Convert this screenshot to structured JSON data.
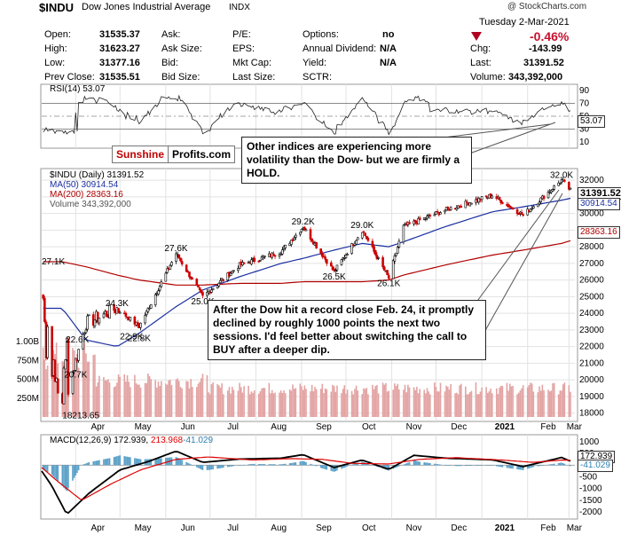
{
  "header": {
    "symbol": "$INDU",
    "name": "Dow Jones Industrial Average",
    "exchange": "INDX",
    "copyright": "@ StockCharts.com",
    "date": "Tuesday  2-Mar-2021",
    "change_pct": "-0.46%",
    "chg_label": "Chg:",
    "chg": "-143.99",
    "last_label": "Last:",
    "last": "31391.52",
    "volume_label": "Volume:",
    "volume": "343,392,000",
    "col1": [
      {
        "label": "Open:",
        "value": "31535.37"
      },
      {
        "label": "High:",
        "value": "31623.27"
      },
      {
        "label": "Low:",
        "value": "31377.16"
      },
      {
        "label": "Prev Close:",
        "value": "31535.51"
      }
    ],
    "col2": [
      "Ask:",
      "Ask Size:",
      "Bid:",
      "Bid Size:"
    ],
    "col3": [
      "P/E:",
      "EPS:",
      "Mkt Cap:",
      "Last Size:"
    ],
    "col4": [
      {
        "label": "Options:",
        "value": "no"
      },
      {
        "label": "Annual Dividend:",
        "value": "N/A"
      },
      {
        "label": "Yield:",
        "value": "N/A"
      },
      {
        "label": "SCTR:",
        "value": ""
      }
    ]
  },
  "rsi": {
    "label": "RSI(14) 53.07",
    "value": "53.07",
    "ticks": [
      "90",
      "70",
      "50",
      "30",
      "10"
    ]
  },
  "price_panel": {
    "title": "$INDU (Daily) 31391.52",
    "ma50": "MA(50) 30914.54",
    "ma200": "MA(200) 28363.16",
    "volume": "Volume 343,392,000",
    "last_tag": "31391.52",
    "ma50_tag": "30914.54",
    "ma200_tag": "28363.16",
    "price_ticks": [
      "32000",
      "31000",
      "30000",
      "29000",
      "28000",
      "27000",
      "26000",
      "25000",
      "24000",
      "23000",
      "22000",
      "21000",
      "20000",
      "19000",
      "18000"
    ],
    "volume_ticks": [
      "1.00B",
      "750M",
      "500M",
      "250M"
    ],
    "annotations": [
      "27.1K",
      "27.6K",
      "24.3K",
      "22.6K",
      "22.9K",
      "22.8K",
      "25.0K",
      "20.7K",
      "18213.65",
      "29.2K",
      "26.5K",
      "29.0K",
      "26.1K",
      "32.0K"
    ]
  },
  "macd": {
    "label": "MACD(12,26,9) 172.939, 213.968, -41.029",
    "label_prefix": "MACD(12,26,9) 172.939,",
    "label_signal": "213.968",
    "label_hist": "-41.029",
    "tag_macd": "172.939",
    "tag_hist": "-41.029",
    "ticks": [
      "1000",
      "500",
      "0",
      "-500",
      "-1000",
      "-1500",
      "-2000"
    ]
  },
  "xaxis": {
    "months": [
      "Apr",
      "May",
      "Jun",
      "Jul",
      "Aug",
      "Sep",
      "Oct",
      "Nov",
      "Dec",
      "2021",
      "Feb",
      "Mar"
    ]
  },
  "logo": {
    "part1": "Sunshine",
    "part2": "Profits.com"
  },
  "callout1": "Other indices are experiencing more volatility than the Dow- but we are firmly a HOLD.",
  "callout2": "After the Dow hit a record close Feb. 24, it promptly declined by roughly 1000 points the next two sessions. I'd feel better about switching the call to BUY after a deeper dip.",
  "colors": {
    "up": "#000000",
    "down": "#cc0000",
    "ma50": "#1a2fa0",
    "ma200": "#b00000",
    "volume": "#e3a3a3",
    "macd": "#000000",
    "signal": "#dd0000",
    "hist": "#5aa0c8"
  },
  "chart_data": {
    "type": "line",
    "title": "$INDU (Daily) 31391.52",
    "x": [
      "2020-03-23",
      "2020-04-08",
      "2020-04-29",
      "2020-05-14",
      "2020-06-08",
      "2020-06-26",
      "2020-07-21",
      "2020-08-18",
      "2020-09-02",
      "2020-09-23",
      "2020-10-12",
      "2020-10-30",
      "2020-11-09",
      "2020-12-07",
      "2021-01-08",
      "2021-01-29",
      "2021-02-24",
      "2021-03-02"
    ],
    "series": [
      {
        "name": "$INDU",
        "values": [
          18213.65,
          23400,
          24300,
          23200,
          27600,
          25000,
          26900,
          27700,
          29200,
          26500,
          29000,
          26100,
          29200,
          30200,
          31100,
          29900,
          32000,
          31391.52
        ]
      },
      {
        "name": "MA(50)",
        "values": [
          24300,
          22400,
          22000,
          22800,
          24400,
          25400,
          26200,
          27000,
          27300,
          27800,
          28200,
          28000,
          28300,
          29200,
          30100,
          30400,
          30800,
          30914.54
        ]
      },
      {
        "name": "MA(200)",
        "values": [
          27100,
          26800,
          26300,
          26000,
          25700,
          25700,
          25800,
          25800,
          25900,
          25900,
          25900,
          26000,
          26300,
          26900,
          27500,
          27800,
          28200,
          28363.16
        ]
      }
    ],
    "ylim": [
      17500,
      32700
    ],
    "grid": true
  }
}
